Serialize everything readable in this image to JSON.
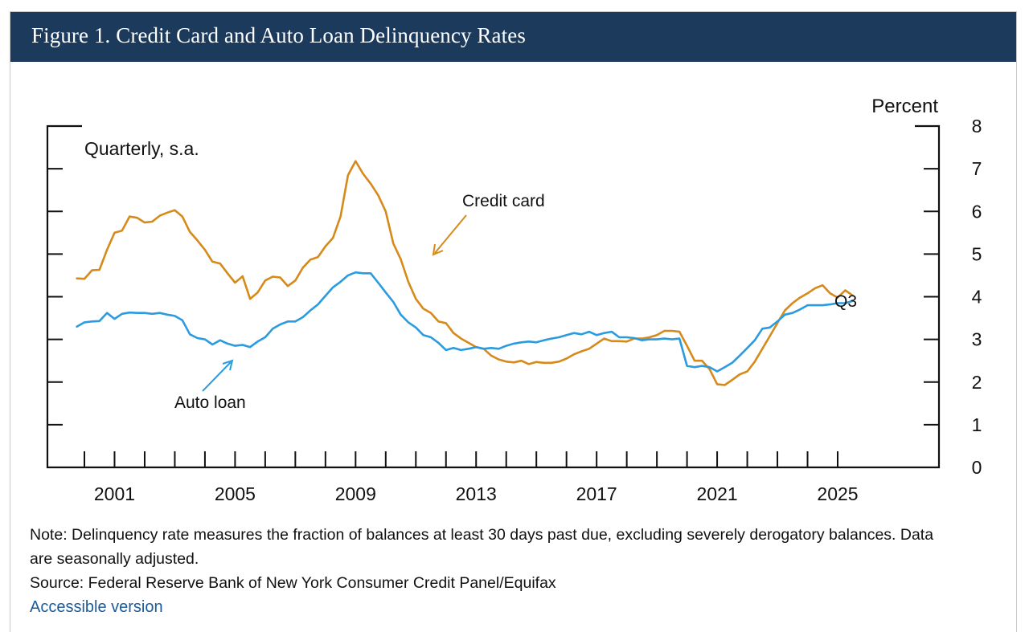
{
  "figure": {
    "title": "Figure 1. Credit Card and Auto Loan Delinquency Rates",
    "note": "Note: Delinquency rate measures the fraction of balances at least 30 days past due, excluding severely derogatory balances. Data are seasonally adjusted.",
    "source": "Source: Federal Reserve Bank of New York Consumer Credit Panel/Equifax",
    "accessible_link": "Accessible version"
  },
  "colors": {
    "header_bg": "#1b3a5c",
    "credit_card": "#d68a1a",
    "auto_loan": "#2b9be0",
    "link": "#1c5a9a"
  },
  "chart_data": {
    "type": "line",
    "frequency_label": "Quarterly, s.a.",
    "ylabel": "Percent",
    "ylim": [
      0,
      8
    ],
    "yticks": [
      "0",
      "1",
      "2",
      "3",
      "4",
      "5",
      "6",
      "7",
      "8"
    ],
    "xlim": [
      1999.5,
      2027.5
    ],
    "xticks": [
      "2001",
      "2005",
      "2009",
      "2013",
      "2017",
      "2021",
      "2025"
    ],
    "x_minor_ticks": [
      2000,
      2001,
      2002,
      2003,
      2004,
      2005,
      2006,
      2007,
      2008,
      2009,
      2010,
      2011,
      2012,
      2013,
      2014,
      2015,
      2016,
      2017,
      2018,
      2019,
      2020,
      2021,
      2022,
      2023,
      2024,
      2025
    ],
    "end_label": "Q3",
    "series": [
      {
        "name": "Credit card",
        "color": "#d68a1a",
        "points": [
          [
            1999.75,
            4.43
          ],
          [
            2000.0,
            4.42
          ],
          [
            2000.25,
            4.62
          ],
          [
            2000.5,
            4.63
          ],
          [
            2000.75,
            5.1
          ],
          [
            2001.0,
            5.5
          ],
          [
            2001.25,
            5.55
          ],
          [
            2001.5,
            5.88
          ],
          [
            2001.75,
            5.85
          ],
          [
            2002.0,
            5.74
          ],
          [
            2002.25,
            5.76
          ],
          [
            2002.5,
            5.9
          ],
          [
            2002.75,
            5.97
          ],
          [
            2003.0,
            6.03
          ],
          [
            2003.25,
            5.88
          ],
          [
            2003.5,
            5.52
          ],
          [
            2003.75,
            5.32
          ],
          [
            2004.0,
            5.1
          ],
          [
            2004.25,
            4.82
          ],
          [
            2004.5,
            4.78
          ],
          [
            2004.75,
            4.55
          ],
          [
            2005.0,
            4.33
          ],
          [
            2005.25,
            4.48
          ],
          [
            2005.5,
            3.95
          ],
          [
            2005.75,
            4.1
          ],
          [
            2006.0,
            4.38
          ],
          [
            2006.25,
            4.47
          ],
          [
            2006.5,
            4.45
          ],
          [
            2006.75,
            4.25
          ],
          [
            2007.0,
            4.38
          ],
          [
            2007.25,
            4.68
          ],
          [
            2007.5,
            4.87
          ],
          [
            2007.75,
            4.93
          ],
          [
            2008.0,
            5.18
          ],
          [
            2008.25,
            5.38
          ],
          [
            2008.5,
            5.88
          ],
          [
            2008.75,
            6.85
          ],
          [
            2009.0,
            7.18
          ],
          [
            2009.25,
            6.88
          ],
          [
            2009.5,
            6.65
          ],
          [
            2009.75,
            6.38
          ],
          [
            2010.0,
            6.0
          ],
          [
            2010.25,
            5.25
          ],
          [
            2010.5,
            4.88
          ],
          [
            2010.75,
            4.35
          ],
          [
            2011.0,
            3.95
          ],
          [
            2011.25,
            3.72
          ],
          [
            2011.5,
            3.62
          ],
          [
            2011.75,
            3.42
          ],
          [
            2012.0,
            3.38
          ],
          [
            2012.25,
            3.15
          ],
          [
            2012.5,
            3.02
          ],
          [
            2012.75,
            2.92
          ],
          [
            2013.0,
            2.82
          ],
          [
            2013.25,
            2.78
          ],
          [
            2013.5,
            2.62
          ],
          [
            2013.75,
            2.53
          ],
          [
            2014.0,
            2.48
          ],
          [
            2014.25,
            2.46
          ],
          [
            2014.5,
            2.5
          ],
          [
            2014.75,
            2.42
          ],
          [
            2015.0,
            2.47
          ],
          [
            2015.25,
            2.45
          ],
          [
            2015.5,
            2.45
          ],
          [
            2015.75,
            2.48
          ],
          [
            2016.0,
            2.55
          ],
          [
            2016.25,
            2.65
          ],
          [
            2016.5,
            2.72
          ],
          [
            2016.75,
            2.78
          ],
          [
            2017.0,
            2.9
          ],
          [
            2017.25,
            3.02
          ],
          [
            2017.5,
            2.96
          ],
          [
            2017.75,
            2.96
          ],
          [
            2018.0,
            2.95
          ],
          [
            2018.25,
            3.02
          ],
          [
            2018.5,
            3.02
          ],
          [
            2018.75,
            3.05
          ],
          [
            2019.0,
            3.1
          ],
          [
            2019.25,
            3.2
          ],
          [
            2019.5,
            3.2
          ],
          [
            2019.75,
            3.18
          ],
          [
            2020.0,
            2.85
          ],
          [
            2020.25,
            2.5
          ],
          [
            2020.5,
            2.5
          ],
          [
            2020.75,
            2.3
          ],
          [
            2021.0,
            1.95
          ],
          [
            2021.25,
            1.93
          ],
          [
            2021.5,
            2.05
          ],
          [
            2021.75,
            2.18
          ],
          [
            2022.0,
            2.25
          ],
          [
            2022.25,
            2.48
          ],
          [
            2022.5,
            2.78
          ],
          [
            2022.75,
            3.08
          ],
          [
            2023.0,
            3.38
          ],
          [
            2023.25,
            3.68
          ],
          [
            2023.5,
            3.85
          ],
          [
            2023.75,
            3.98
          ],
          [
            2024.0,
            4.08
          ],
          [
            2024.25,
            4.2
          ],
          [
            2024.5,
            4.27
          ],
          [
            2024.75,
            4.08
          ],
          [
            2025.0,
            3.98
          ],
          [
            2025.25,
            4.15
          ],
          [
            2025.5,
            4.03
          ]
        ]
      },
      {
        "name": "Auto loan",
        "color": "#2b9be0",
        "points": [
          [
            1999.75,
            3.3
          ],
          [
            2000.0,
            3.4
          ],
          [
            2000.25,
            3.42
          ],
          [
            2000.5,
            3.43
          ],
          [
            2000.75,
            3.62
          ],
          [
            2001.0,
            3.48
          ],
          [
            2001.25,
            3.6
          ],
          [
            2001.5,
            3.63
          ],
          [
            2001.75,
            3.62
          ],
          [
            2002.0,
            3.62
          ],
          [
            2002.25,
            3.6
          ],
          [
            2002.5,
            3.62
          ],
          [
            2002.75,
            3.58
          ],
          [
            2003.0,
            3.55
          ],
          [
            2003.25,
            3.45
          ],
          [
            2003.5,
            3.12
          ],
          [
            2003.75,
            3.03
          ],
          [
            2004.0,
            3.0
          ],
          [
            2004.25,
            2.88
          ],
          [
            2004.5,
            2.98
          ],
          [
            2004.75,
            2.9
          ],
          [
            2005.0,
            2.85
          ],
          [
            2005.25,
            2.87
          ],
          [
            2005.5,
            2.82
          ],
          [
            2005.75,
            2.95
          ],
          [
            2006.0,
            3.05
          ],
          [
            2006.25,
            3.25
          ],
          [
            2006.5,
            3.35
          ],
          [
            2006.75,
            3.42
          ],
          [
            2007.0,
            3.42
          ],
          [
            2007.25,
            3.52
          ],
          [
            2007.5,
            3.68
          ],
          [
            2007.75,
            3.82
          ],
          [
            2008.0,
            4.02
          ],
          [
            2008.25,
            4.22
          ],
          [
            2008.5,
            4.35
          ],
          [
            2008.75,
            4.5
          ],
          [
            2009.0,
            4.57
          ],
          [
            2009.25,
            4.55
          ],
          [
            2009.5,
            4.55
          ],
          [
            2009.75,
            4.33
          ],
          [
            2010.0,
            4.1
          ],
          [
            2010.25,
            3.88
          ],
          [
            2010.5,
            3.58
          ],
          [
            2010.75,
            3.4
          ],
          [
            2011.0,
            3.28
          ],
          [
            2011.25,
            3.1
          ],
          [
            2011.5,
            3.05
          ],
          [
            2011.75,
            2.92
          ],
          [
            2012.0,
            2.75
          ],
          [
            2012.25,
            2.8
          ],
          [
            2012.5,
            2.75
          ],
          [
            2012.75,
            2.78
          ],
          [
            2013.0,
            2.82
          ],
          [
            2013.25,
            2.78
          ],
          [
            2013.5,
            2.8
          ],
          [
            2013.75,
            2.78
          ],
          [
            2014.0,
            2.85
          ],
          [
            2014.25,
            2.9
          ],
          [
            2014.5,
            2.93
          ],
          [
            2014.75,
            2.95
          ],
          [
            2015.0,
            2.93
          ],
          [
            2015.25,
            2.98
          ],
          [
            2015.5,
            3.02
          ],
          [
            2015.75,
            3.05
          ],
          [
            2016.0,
            3.1
          ],
          [
            2016.25,
            3.15
          ],
          [
            2016.5,
            3.12
          ],
          [
            2016.75,
            3.18
          ],
          [
            2017.0,
            3.1
          ],
          [
            2017.25,
            3.15
          ],
          [
            2017.5,
            3.18
          ],
          [
            2017.75,
            3.05
          ],
          [
            2018.0,
            3.05
          ],
          [
            2018.25,
            3.03
          ],
          [
            2018.5,
            2.98
          ],
          [
            2018.75,
            3.0
          ],
          [
            2019.0,
            3.0
          ],
          [
            2019.25,
            3.02
          ],
          [
            2019.5,
            3.0
          ],
          [
            2019.75,
            3.02
          ],
          [
            2020.0,
            2.38
          ],
          [
            2020.25,
            2.35
          ],
          [
            2020.5,
            2.38
          ],
          [
            2020.75,
            2.35
          ],
          [
            2021.0,
            2.25
          ],
          [
            2021.25,
            2.35
          ],
          [
            2021.5,
            2.45
          ],
          [
            2021.75,
            2.62
          ],
          [
            2022.0,
            2.8
          ],
          [
            2022.25,
            2.98
          ],
          [
            2022.5,
            3.25
          ],
          [
            2022.75,
            3.28
          ],
          [
            2023.0,
            3.42
          ],
          [
            2023.25,
            3.58
          ],
          [
            2023.5,
            3.62
          ],
          [
            2023.75,
            3.7
          ],
          [
            2024.0,
            3.8
          ],
          [
            2024.25,
            3.8
          ],
          [
            2024.5,
            3.8
          ],
          [
            2024.75,
            3.82
          ],
          [
            2025.0,
            3.85
          ],
          [
            2025.25,
            3.85
          ],
          [
            2025.5,
            3.9
          ]
        ]
      }
    ],
    "annotations": [
      {
        "text": "Credit card",
        "series": "Credit card"
      },
      {
        "text": "Auto loan",
        "series": "Auto loan"
      }
    ]
  }
}
